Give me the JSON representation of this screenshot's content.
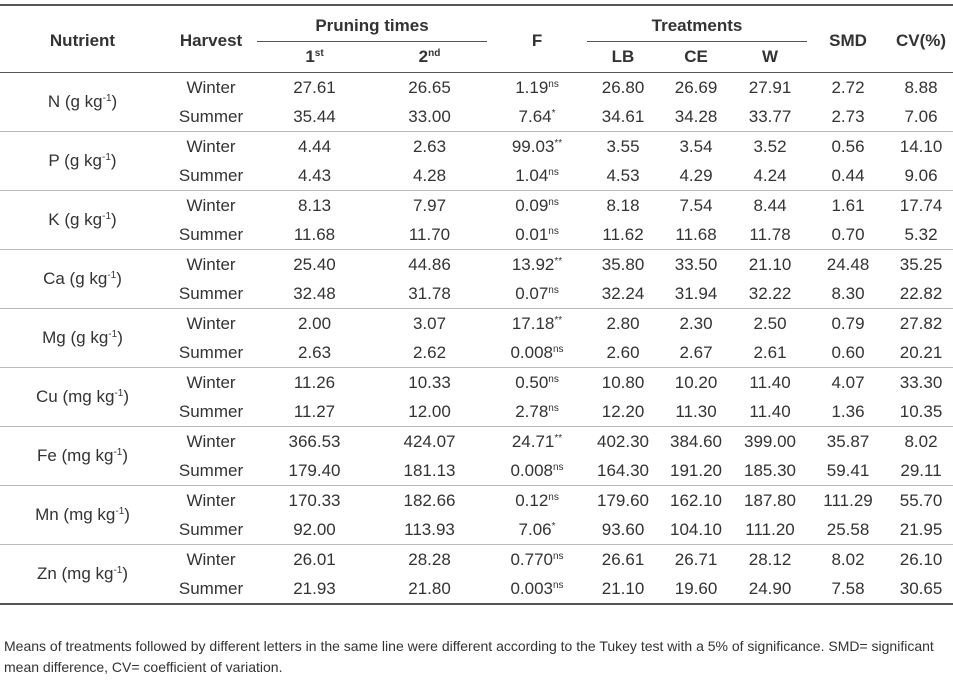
{
  "header": {
    "nutrient": "Nutrient",
    "harvest": "Harvest",
    "pruning": "Pruning times",
    "first": [
      "1",
      "st"
    ],
    "second": [
      "2",
      "nd"
    ],
    "f": "F",
    "treatments": "Treatments",
    "lb": "LB",
    "ce": "CE",
    "w": "W",
    "smd": "SMD",
    "cv": "CV(%)"
  },
  "groups": [
    {
      "nutrient": [
        "N (g kg",
        "-1",
        ")"
      ],
      "rows": [
        [
          "Winter",
          "27.61",
          "26.65",
          [
            "1.19",
            "ns"
          ],
          "26.80",
          "26.69",
          "27.91",
          "2.72",
          "8.88"
        ],
        [
          "Summer",
          "35.44",
          "33.00",
          [
            "7.64",
            "*"
          ],
          "34.61",
          "34.28",
          "33.77",
          "2.73",
          "7.06"
        ]
      ]
    },
    {
      "nutrient": [
        "P (g kg",
        "-1",
        ")"
      ],
      "rows": [
        [
          "Winter",
          "4.44",
          "2.63",
          [
            "99.03",
            "**"
          ],
          "3.55",
          "3.54",
          "3.52",
          "0.56",
          "14.10"
        ],
        [
          "Summer",
          "4.43",
          "4.28",
          [
            "1.04",
            "ns"
          ],
          "4.53",
          "4.29",
          "4.24",
          "0.44",
          "9.06"
        ]
      ]
    },
    {
      "nutrient": [
        "K (g kg",
        "-1",
        ")"
      ],
      "rows": [
        [
          "Winter",
          "8.13",
          "7.97",
          [
            "0.09",
            "ns"
          ],
          "8.18",
          "7.54",
          "8.44",
          "1.61",
          "17.74"
        ],
        [
          "Summer",
          "11.68",
          "11.70",
          [
            "0.01",
            "ns"
          ],
          "11.62",
          "11.68",
          "11.78",
          "0.70",
          "5.32"
        ]
      ]
    },
    {
      "nutrient": [
        "Ca (g kg",
        "-1",
        ")"
      ],
      "rows": [
        [
          "Winter",
          "25.40",
          "44.86",
          [
            "13.92",
            "**"
          ],
          "35.80",
          "33.50",
          "21.10",
          "24.48",
          "35.25"
        ],
        [
          "Summer",
          "32.48",
          "31.78",
          [
            "0.07",
            "ns"
          ],
          "32.24",
          "31.94",
          "32.22",
          "8.30",
          "22.82"
        ]
      ]
    },
    {
      "nutrient": [
        "Mg (g kg",
        "-1",
        ")"
      ],
      "rows": [
        [
          "Winter",
          "2.00",
          "3.07",
          [
            "17.18",
            "**"
          ],
          "2.80",
          "2.30",
          "2.50",
          "0.79",
          "27.82"
        ],
        [
          "Summer",
          "2.63",
          "2.62",
          [
            "0.008",
            "ns"
          ],
          "2.60",
          "2.67",
          "2.61",
          "0.60",
          "20.21"
        ]
      ]
    },
    {
      "nutrient": [
        "Cu (mg kg",
        "-1",
        ")"
      ],
      "rows": [
        [
          "Winter",
          "11.26",
          "10.33",
          [
            "0.50",
            "ns"
          ],
          "10.80",
          "10.20",
          "11.40",
          "4.07",
          "33.30"
        ],
        [
          "Summer",
          "11.27",
          "12.00",
          [
            "2.78",
            "ns"
          ],
          "12.20",
          "11.30",
          "11.40",
          "1.36",
          "10.35"
        ]
      ]
    },
    {
      "nutrient": [
        "Fe (mg kg",
        "-1",
        ")"
      ],
      "rows": [
        [
          "Winter",
          "366.53",
          "424.07",
          [
            "24.71",
            "**"
          ],
          "402.30",
          "384.60",
          "399.00",
          "35.87",
          "8.02"
        ],
        [
          "Summer",
          "179.40",
          "181.13",
          [
            "0.008",
            "ns"
          ],
          "164.30",
          "191.20",
          "185.30",
          "59.41",
          "29.11"
        ]
      ]
    },
    {
      "nutrient": [
        "Mn (mg kg",
        "-1",
        ")"
      ],
      "rows": [
        [
          "Winter",
          "170.33",
          "182.66",
          [
            "0.12",
            "ns"
          ],
          "179.60",
          "162.10",
          "187.80",
          "111.29",
          "55.70"
        ],
        [
          "Summer",
          "92.00",
          "113.93",
          [
            "7.06",
            "*"
          ],
          "93.60",
          "104.10",
          "111.20",
          "25.58",
          "21.95"
        ]
      ]
    },
    {
      "nutrient": [
        "Zn (mg kg",
        "-1",
        ")"
      ],
      "rows": [
        [
          "Winter",
          "26.01",
          "28.28",
          [
            "0.770",
            "ns"
          ],
          "26.61",
          "26.71",
          "28.12",
          "8.02",
          "26.10"
        ],
        [
          "Summer",
          "21.93",
          "21.80",
          [
            "0.003",
            "ns"
          ],
          "21.10",
          "19.60",
          "24.90",
          "7.58",
          "30.65"
        ]
      ]
    }
  ],
  "footnote": "Means of treatments followed by different letters in the same line were different according to the Tukey test with a 5% of significance. SMD= significant mean difference, CV= coefficient of variation."
}
